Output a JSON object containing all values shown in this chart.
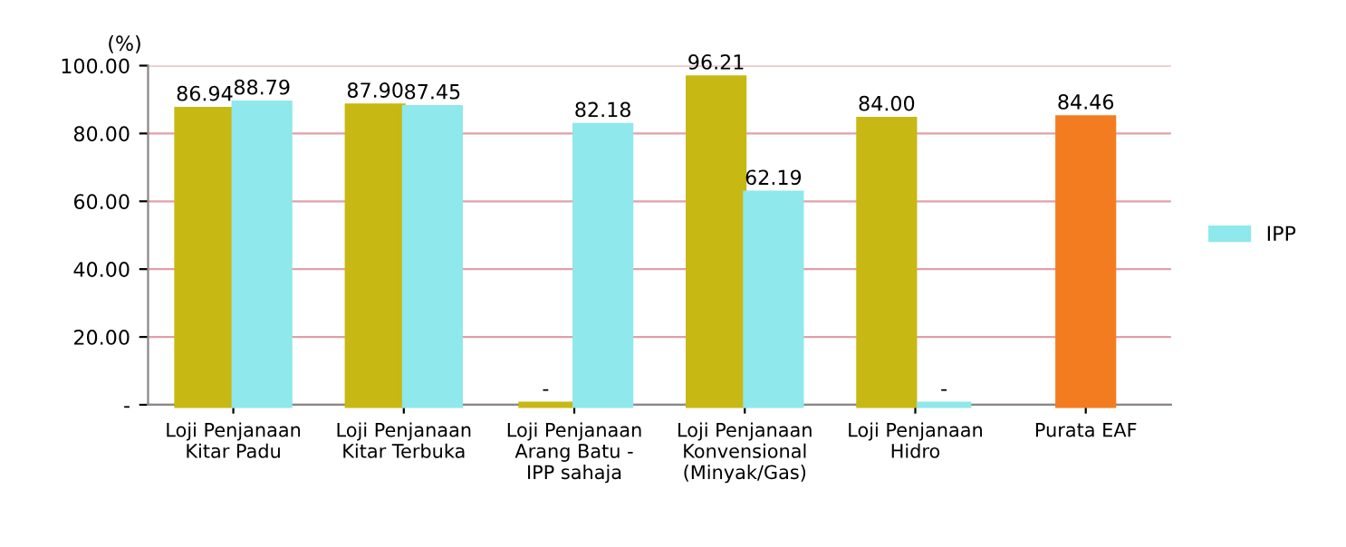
{
  "chart_data": {
    "type": "bar",
    "ylabel": "(%)",
    "categories": [
      "Loji Penjanaan\nKitar Padu",
      "Loji Penjanaan\nKitar Terbuka",
      "Loji Penjanaan\nArang Batu -\nIPP sahaja",
      "Loji Penjanaan\nKonvensional\n(Minyak/Gas)",
      "Loji Penjanaan\nHidro",
      "Purata EAF"
    ],
    "series": [
      {
        "color": "#c8b814",
        "values": [
          86.94,
          87.9,
          0,
          96.21,
          84.0,
          null
        ],
        "value_labels": [
          "86.94",
          "87.90",
          "-",
          "96.21",
          "84.00",
          null
        ]
      },
      {
        "name": "IPP",
        "color": "#8ee8ec",
        "values": [
          88.79,
          87.45,
          82.18,
          62.19,
          0,
          null
        ],
        "value_labels": [
          "88.79",
          "87.45",
          "82.18",
          "62.19",
          "-",
          null
        ]
      },
      {
        "color": "#f47c20",
        "values": [
          null,
          null,
          null,
          null,
          null,
          84.46
        ],
        "value_labels": [
          null,
          null,
          null,
          null,
          null,
          "84.46"
        ]
      }
    ],
    "ylim": [
      0,
      100
    ],
    "yticks": [
      {
        "value": 0,
        "label": "-"
      },
      {
        "value": 20,
        "label": "20.00"
      },
      {
        "value": 40,
        "label": "40.00"
      },
      {
        "value": 60,
        "label": "60.00"
      },
      {
        "value": 80,
        "label": "80.00"
      },
      {
        "value": 100,
        "label": "100.00"
      }
    ],
    "grid": "y",
    "legend": "right"
  }
}
